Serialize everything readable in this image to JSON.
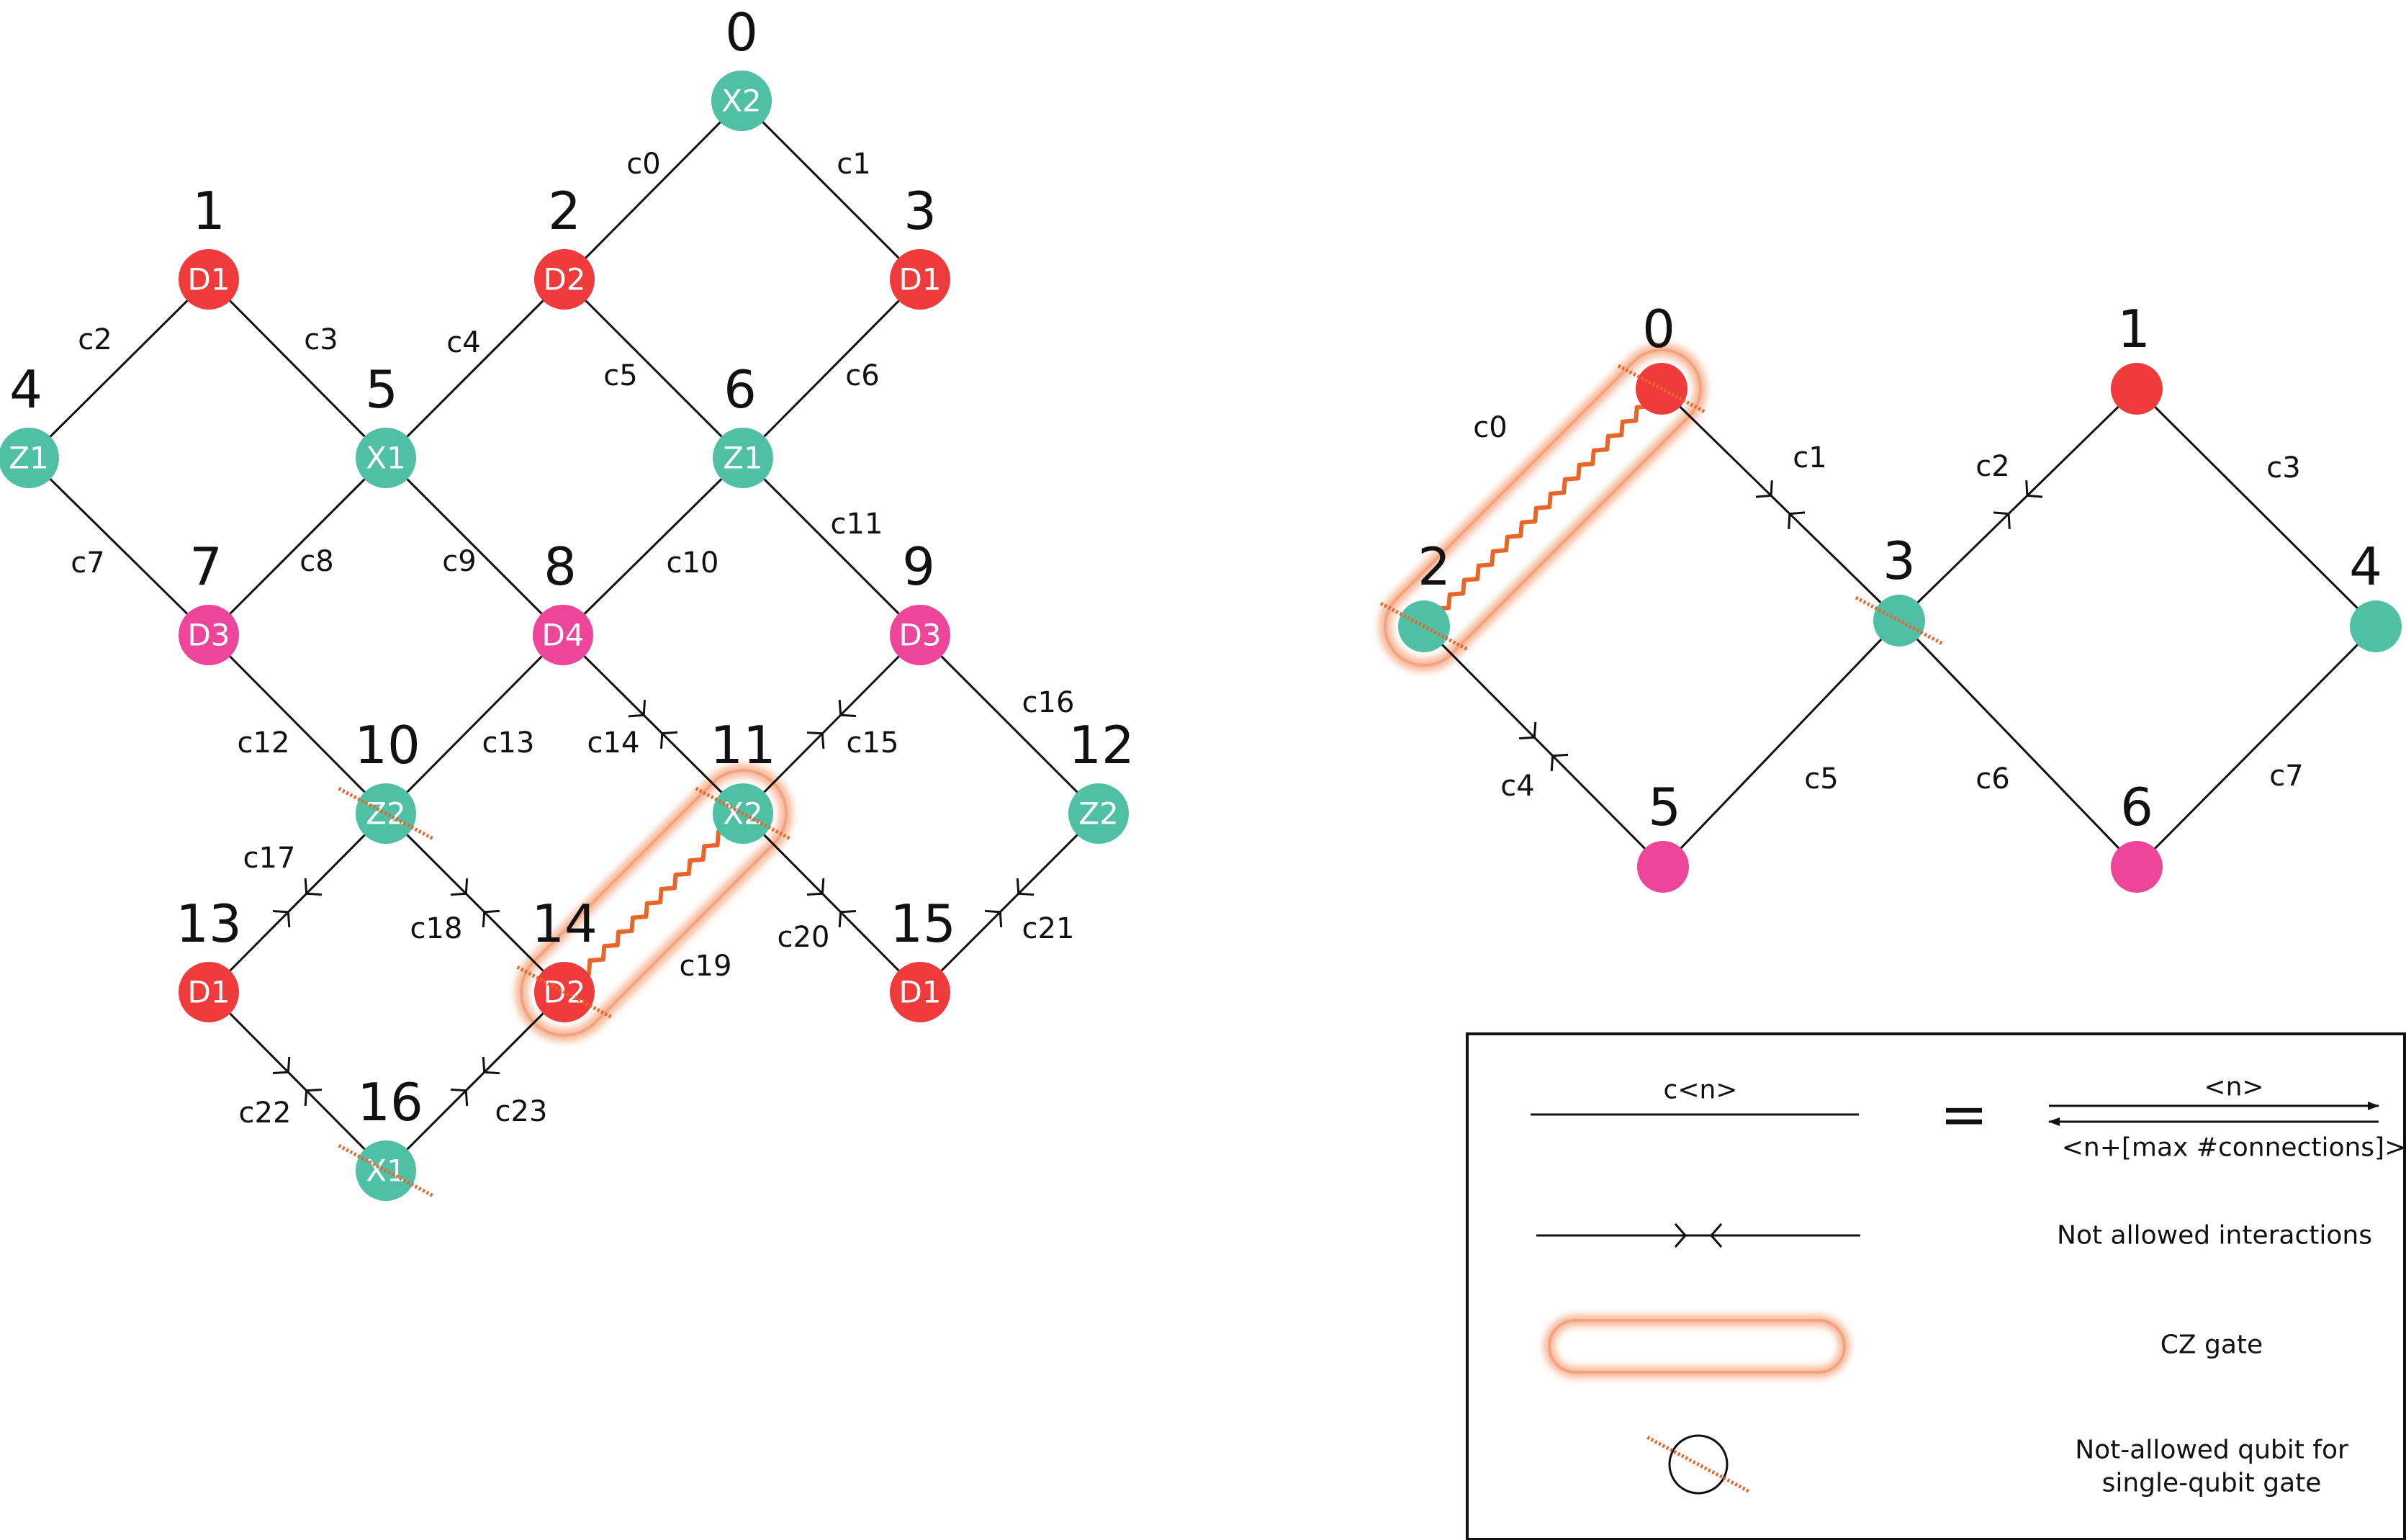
{
  "colors": {
    "D1": "#ef3b3b",
    "D2": "#ef3b3b",
    "D3": "#ec4599",
    "D4": "#ec4599",
    "X": "#4fc0a5",
    "Z": "#4fc0a5",
    "red": "#ef3b3b",
    "pink": "#ec4599",
    "teal": "#4fc0a5",
    "cz": "#e8662a",
    "czGlow": "#f6b99a"
  },
  "left": {
    "nodes": [
      {
        "id": "0",
        "label": "X2",
        "kind": "teal"
      },
      {
        "id": "1",
        "label": "D1",
        "kind": "red"
      },
      {
        "id": "2",
        "label": "D2",
        "kind": "red"
      },
      {
        "id": "3",
        "label": "D1",
        "kind": "red"
      },
      {
        "id": "4",
        "label": "Z1",
        "kind": "teal"
      },
      {
        "id": "5",
        "label": "X1",
        "kind": "teal"
      },
      {
        "id": "6",
        "label": "Z1",
        "kind": "teal"
      },
      {
        "id": "7",
        "label": "D3",
        "kind": "pink"
      },
      {
        "id": "8",
        "label": "D4",
        "kind": "pink"
      },
      {
        "id": "9",
        "label": "D3",
        "kind": "pink"
      },
      {
        "id": "10",
        "label": "Z2",
        "kind": "teal"
      },
      {
        "id": "11",
        "label": "X2",
        "kind": "teal"
      },
      {
        "id": "12",
        "label": "Z2",
        "kind": "teal"
      },
      {
        "id": "13",
        "label": "D1",
        "kind": "red"
      },
      {
        "id": "14",
        "label": "D2",
        "kind": "red"
      },
      {
        "id": "15",
        "label": "D1",
        "kind": "red"
      },
      {
        "id": "16",
        "label": "X1",
        "kind": "teal"
      }
    ],
    "edges": [
      {
        "label": "c0",
        "from": 2,
        "to": 0,
        "blocked": false
      },
      {
        "label": "c1",
        "from": 0,
        "to": 3,
        "blocked": false
      },
      {
        "label": "c2",
        "from": 4,
        "to": 1,
        "blocked": false
      },
      {
        "label": "c3",
        "from": 1,
        "to": 5,
        "blocked": false
      },
      {
        "label": "c4",
        "from": 5,
        "to": 2,
        "blocked": false
      },
      {
        "label": "c5",
        "from": 2,
        "to": 6,
        "blocked": false
      },
      {
        "label": "c6",
        "from": 6,
        "to": 3,
        "blocked": false
      },
      {
        "label": "c7",
        "from": 4,
        "to": 7,
        "blocked": false
      },
      {
        "label": "c8",
        "from": 7,
        "to": 5,
        "blocked": false
      },
      {
        "label": "c9",
        "from": 5,
        "to": 8,
        "blocked": false
      },
      {
        "label": "c10",
        "from": 8,
        "to": 6,
        "blocked": false
      },
      {
        "label": "c11",
        "from": 6,
        "to": 9,
        "blocked": false
      },
      {
        "label": "c12",
        "from": 7,
        "to": 10,
        "blocked": false
      },
      {
        "label": "c13",
        "from": 10,
        "to": 8,
        "blocked": false
      },
      {
        "label": "c14",
        "from": 8,
        "to": 11,
        "blocked": true
      },
      {
        "label": "c15",
        "from": 11,
        "to": 9,
        "blocked": true
      },
      {
        "label": "c16",
        "from": 9,
        "to": 12,
        "blocked": false
      },
      {
        "label": "c17",
        "from": 13,
        "to": 10,
        "blocked": true
      },
      {
        "label": "c18",
        "from": 10,
        "to": 14,
        "blocked": true
      },
      {
        "label": "c19",
        "from": 14,
        "to": 11,
        "blocked": false,
        "cz": true
      },
      {
        "label": "c20",
        "from": 11,
        "to": 15,
        "blocked": true
      },
      {
        "label": "c21",
        "from": 15,
        "to": 12,
        "blocked": true
      },
      {
        "label": "c22",
        "from": 13,
        "to": 16,
        "blocked": true
      },
      {
        "label": "c23",
        "from": 16,
        "to": 14,
        "blocked": true
      }
    ],
    "notAllowed": [
      10,
      11,
      14,
      16
    ]
  },
  "right": {
    "nodes": [
      {
        "id": "0",
        "kind": "red"
      },
      {
        "id": "1",
        "kind": "red"
      },
      {
        "id": "2",
        "kind": "teal"
      },
      {
        "id": "3",
        "kind": "teal"
      },
      {
        "id": "4",
        "kind": "teal"
      },
      {
        "id": "5",
        "kind": "pink"
      },
      {
        "id": "6",
        "kind": "pink"
      }
    ],
    "edges": [
      {
        "label": "c0",
        "from": 2,
        "to": 0,
        "blocked": false,
        "cz": true
      },
      {
        "label": "c1",
        "from": 0,
        "to": 3,
        "blocked": true
      },
      {
        "label": "c2",
        "from": 3,
        "to": 1,
        "blocked": true
      },
      {
        "label": "c3",
        "from": 1,
        "to": 4,
        "blocked": false
      },
      {
        "label": "c4",
        "from": 2,
        "to": 5,
        "blocked": true
      },
      {
        "label": "c5",
        "from": 5,
        "to": 3,
        "blocked": false
      },
      {
        "label": "c6",
        "from": 3,
        "to": 6,
        "blocked": false
      },
      {
        "label": "c7",
        "from": 6,
        "to": 4,
        "blocked": false
      }
    ],
    "notAllowed": [
      0,
      2,
      3
    ]
  },
  "legend": {
    "row1_line_label": "c<n>",
    "row1_equals": "=",
    "row1_top_label": "<n>",
    "row1_bottom_label": "<n+[max #connections]>",
    "row2_text": "Not allowed interactions",
    "row3_text": "CZ gate",
    "row4_text_line1": "Not-allowed qubit for",
    "row4_text_line2": "single-qubit gate"
  }
}
